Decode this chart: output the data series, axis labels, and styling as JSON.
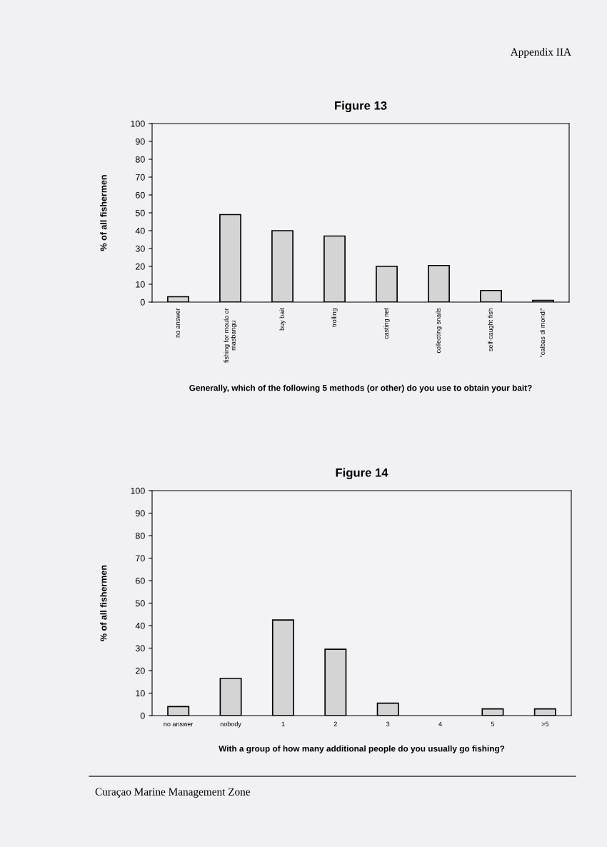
{
  "chart_data": [
    {
      "type": "bar",
      "title": "Figure 13",
      "ylabel": "% of all fishermen",
      "xlabel": "Generally, which of the following 5 methods (or other) do you use to obtain your bait?",
      "categories": [
        "no answer",
        "fishing for moulo or\nmasbangu",
        "buy bait",
        "trolling",
        "casting net",
        "collecting snails",
        "self-caught fish",
        "\"calbas di mondi\""
      ],
      "values": [
        3,
        49,
        40,
        37,
        20,
        20.5,
        6.5,
        1
      ],
      "color": "#d4d4d4",
      "ylim": [
        0,
        100
      ],
      "yticks": [
        0,
        10,
        20,
        30,
        40,
        50,
        60,
        70,
        80,
        90,
        100
      ],
      "grid": false,
      "legend": false,
      "annotations": [
        "Appendix IIA"
      ]
    },
    {
      "type": "bar",
      "title": "Figure 14",
      "ylabel": "% of all fishermen",
      "xlabel": "With a group of how many additional people do you usually go fishing?",
      "categories": [
        "no answer",
        "nobody",
        "1",
        "2",
        "3",
        "4",
        "5",
        ">5"
      ],
      "values": [
        4,
        16.5,
        42.5,
        29.5,
        5.5,
        0,
        3,
        3
      ],
      "color": "#d4d4d4",
      "ylim": [
        0,
        100
      ],
      "yticks": [
        0,
        10,
        20,
        30,
        40,
        50,
        60,
        70,
        80,
        90,
        100
      ],
      "grid": false,
      "legend": false,
      "annotations": [
        "Curaçao Marine Management Zone"
      ]
    }
  ]
}
